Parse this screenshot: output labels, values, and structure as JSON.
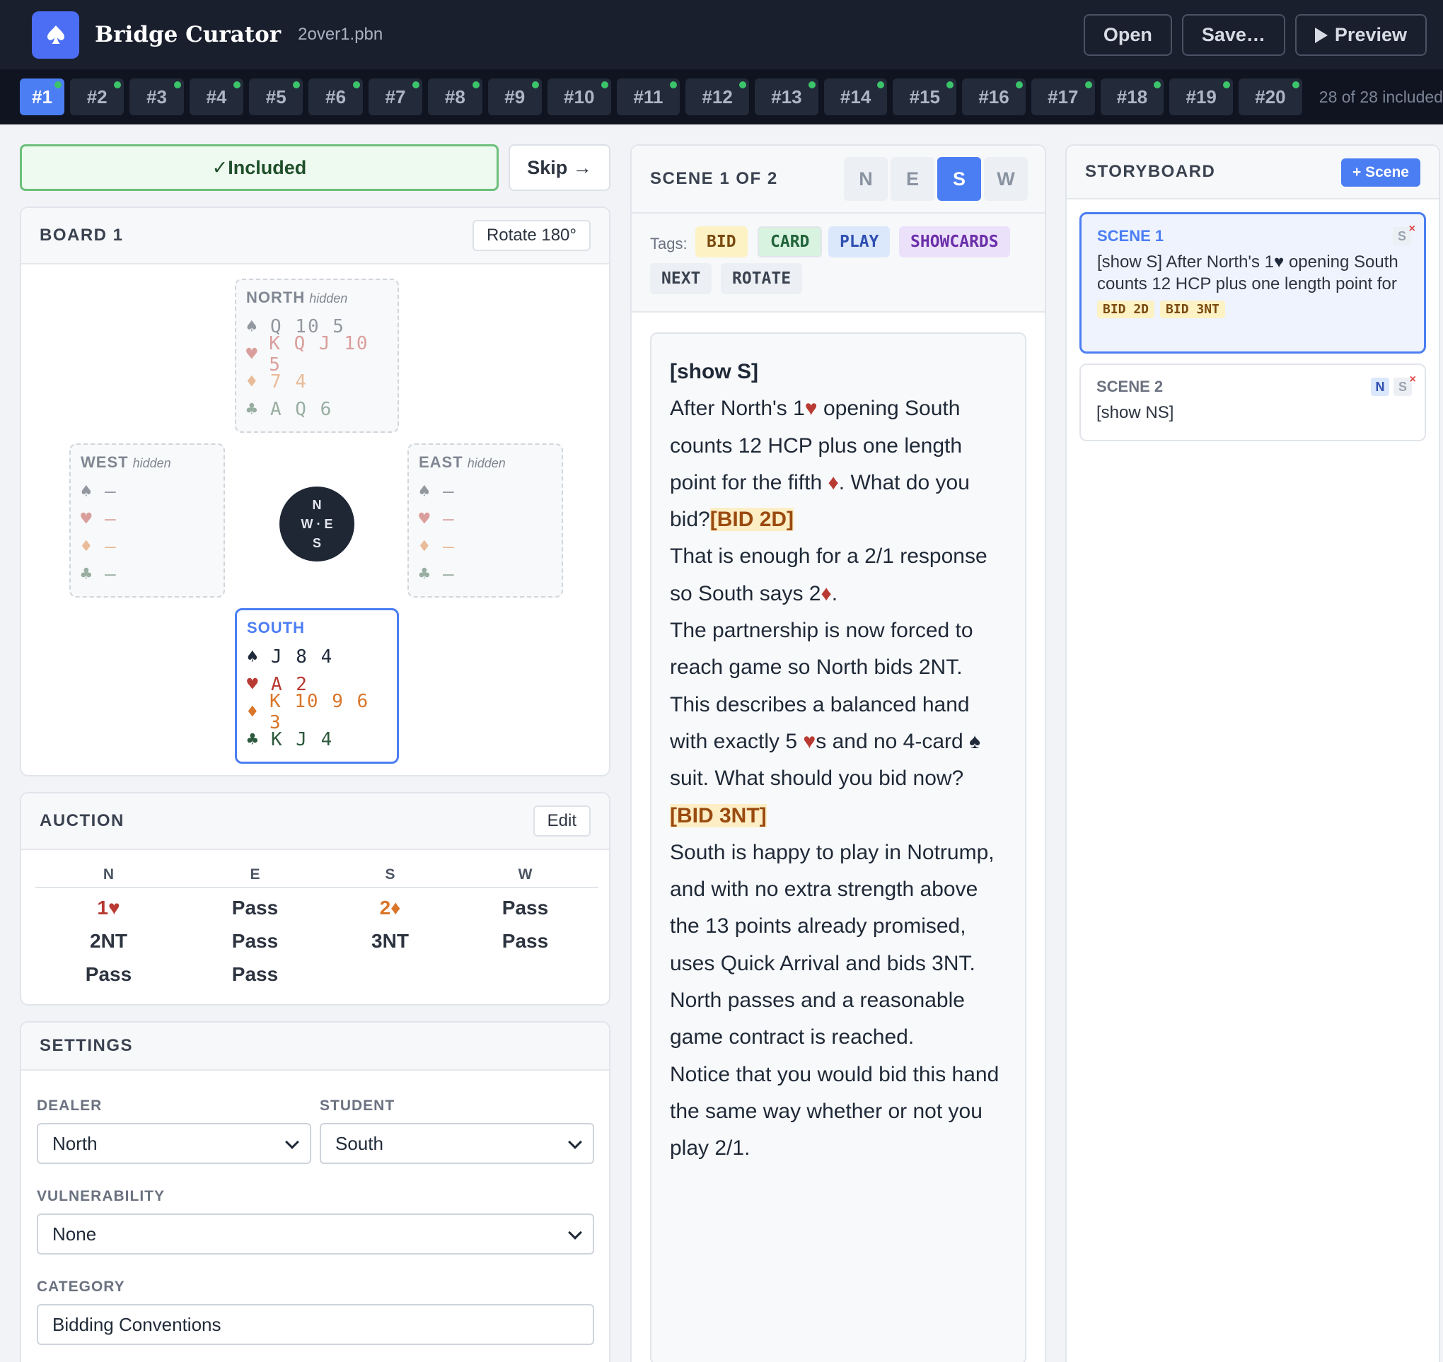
{
  "app": {
    "title": "Bridge Curator",
    "file": "2over1.pbn"
  },
  "toolbar": {
    "open": "Open",
    "save": "Save…",
    "preview": "Preview"
  },
  "boards": {
    "tabs": [
      "#1",
      "#2",
      "#3",
      "#4",
      "#5",
      "#6",
      "#7",
      "#8",
      "#9",
      "#10",
      "#11",
      "#12",
      "#13",
      "#14",
      "#15",
      "#16",
      "#17",
      "#18",
      "#19",
      "#20"
    ],
    "active": "#1",
    "count_text": "28 of 28 included"
  },
  "inclusion": {
    "included_label": "✓Included",
    "skip_label": "Skip →"
  },
  "board": {
    "title": "BOARD 1",
    "rotate_label": "Rotate 180°",
    "hidden_label": "hidden",
    "compass": {
      "n": "N",
      "we": "W · E",
      "s": "S"
    },
    "north": {
      "label": "NORTH",
      "spades": "Q 10 5",
      "hearts": "K Q J 10 5",
      "diamonds": "7 4",
      "clubs": "A Q 6"
    },
    "west": {
      "label": "WEST",
      "spades": "—",
      "hearts": "—",
      "diamonds": "—",
      "clubs": "—"
    },
    "east": {
      "label": "EAST",
      "spades": "—",
      "hearts": "—",
      "diamonds": "—",
      "clubs": "—"
    },
    "south": {
      "label": "SOUTH",
      "spades": "J 8 4",
      "hearts": "A 2",
      "diamonds": "K 10 9 6 3",
      "clubs": "K J 4"
    },
    "suit_symbols": {
      "spade": "♠",
      "heart": "♥",
      "diamond": "♦",
      "club": "♣"
    }
  },
  "auction": {
    "title": "AUCTION",
    "edit_label": "Edit",
    "columns": [
      "N",
      "E",
      "S",
      "W"
    ],
    "rows": [
      [
        "1♥",
        "Pass",
        "2♦",
        "Pass"
      ],
      [
        "2NT",
        "Pass",
        "3NT",
        "Pass"
      ],
      [
        "Pass",
        "Pass",
        "",
        ""
      ]
    ]
  },
  "settings": {
    "title": "SETTINGS",
    "dealer_label": "DEALER",
    "dealer_value": "North",
    "student_label": "STUDENT",
    "student_value": "South",
    "vulnerability_label": "VULNERABILITY",
    "vulnerability_value": "None",
    "category_label": "CATEGORY",
    "category_value": "Bidding Conventions"
  },
  "scene": {
    "title": "SCENE 1 OF 2",
    "seats": [
      "N",
      "E",
      "S",
      "W"
    ],
    "active_seat": "S",
    "tags_label": "Tags:",
    "tags": [
      "BID",
      "CARD",
      "PLAY",
      "SHOWCARDS",
      "NEXT",
      "ROTATE"
    ],
    "text": {
      "cmd": "[show S]",
      "p1": "After North's 1",
      "p2": " opening South counts 12 HCP plus one length point for the fifth ",
      "p3": ". What do you bid?",
      "bid1": "[BID 2D]",
      "p4": "That is enough for a 2/1 response so South says 2",
      "p5": ".",
      "p6": "The partnership is now forced to reach game so North bids 2NT. This describes a balanced hand with exactly 5 ",
      "p7": "s and no 4-card ",
      "p8": " suit.  What should you bid now?",
      "bid2": "[BID 3NT]",
      "p9": "South is happy to play in Notrump, and with no extra strength above the 13 points already promised, uses Quick Arrival and bids 3NT. North passes and a reasonable game contract is reached.",
      "p10": "Notice that you would bid this hand the same way whether or not you play 2/1."
    }
  },
  "storyboard": {
    "title": "STORYBOARD",
    "add_label": "+ Scene",
    "scenes": [
      {
        "name": "SCENE 1",
        "text": "[show S] After North's 1",
        "text2": " opening South counts 12 HCP plus one length point for",
        "tags": [
          "BID 2D",
          "BID 3NT"
        ],
        "seat": "S",
        "remove": "×"
      },
      {
        "name": "SCENE 2",
        "text": "[show NS]",
        "seat_n": "N",
        "seat_s": "S",
        "remove": "×"
      }
    ]
  }
}
